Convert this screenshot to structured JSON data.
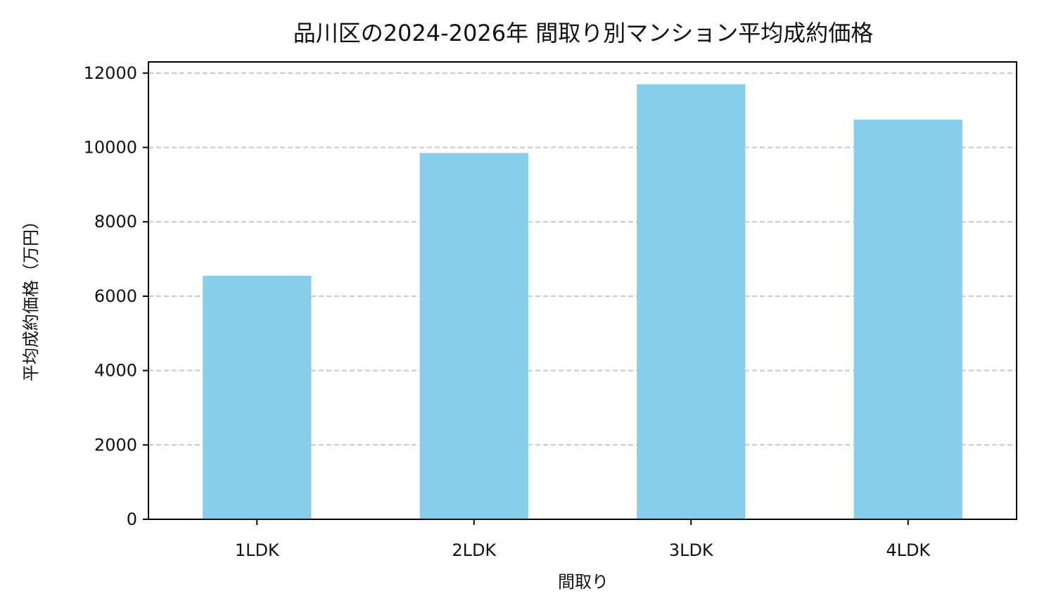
{
  "chart_data": {
    "type": "bar",
    "title": "品川区の2024-2026年 間取り別マンション平均成約価格",
    "xlabel": "間取り",
    "ylabel": "平均成約価格（万円）",
    "categories": [
      "1LDK",
      "2LDK",
      "3LDK",
      "4LDK"
    ],
    "values": [
      6550,
      9850,
      11700,
      10750
    ],
    "ylim": [
      0,
      12300
    ],
    "yticks": [
      0,
      2000,
      4000,
      6000,
      8000,
      10000,
      12000
    ],
    "grid": "horizontal-dashed",
    "legend": "none",
    "colors": {
      "bar": "#87ceeb",
      "grid": "#c8c8c8",
      "axis": "#000000"
    }
  }
}
